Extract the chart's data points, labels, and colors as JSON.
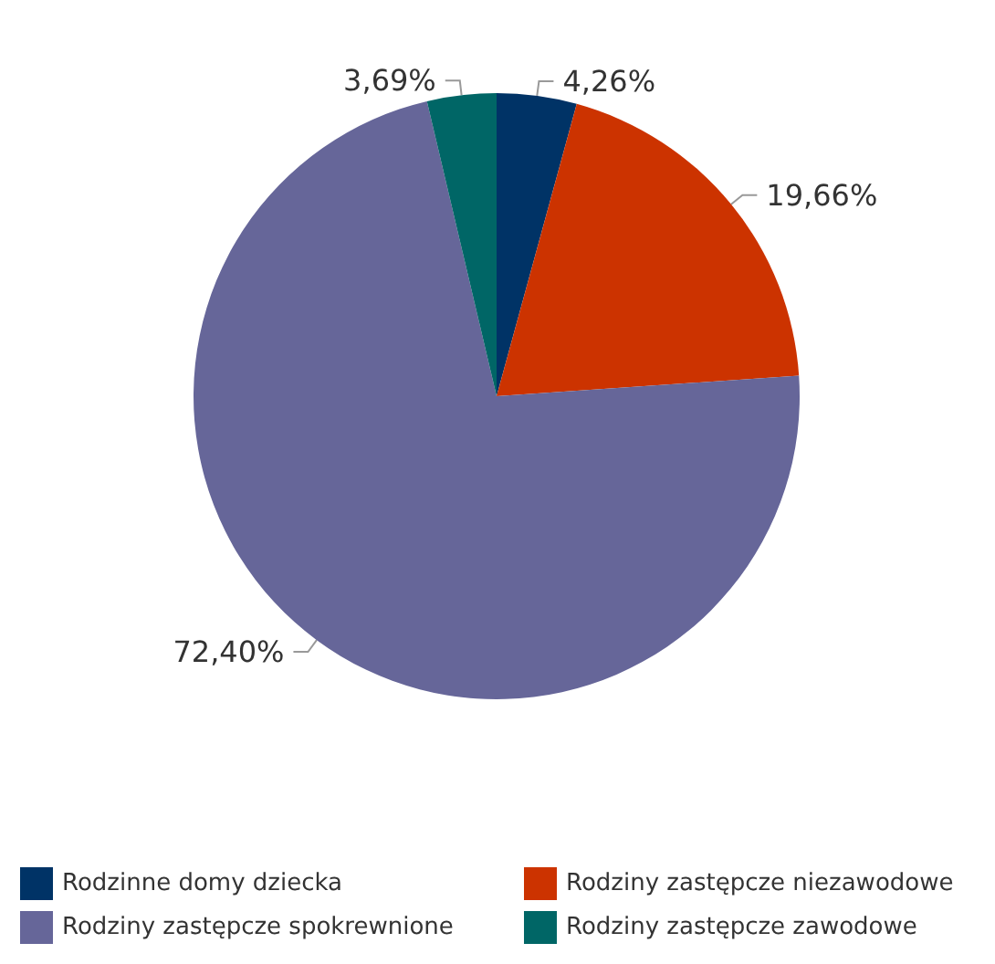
{
  "chart_data": {
    "type": "pie",
    "categories": [
      "Rodzinne domy dziecka",
      "Rodziny zastępcze niezawodowe",
      "Rodziny zastępcze spokrewnione",
      "Rodziny zastępcze zawodowe"
    ],
    "values": [
      4.26,
      19.66,
      72.4,
      3.69
    ],
    "colors": [
      "#003366",
      "#cc3300",
      "#666699",
      "#006666"
    ],
    "value_labels": [
      "4,26%",
      "19,66%",
      "72,40%",
      "3,69%"
    ],
    "legend": "bottom"
  }
}
